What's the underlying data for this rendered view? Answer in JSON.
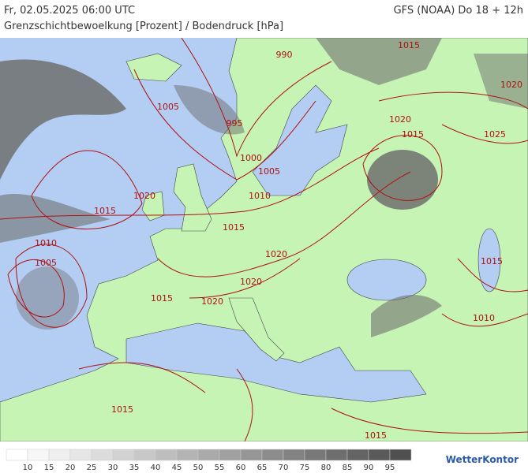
{
  "header": {
    "valid_time": "Fr, 02.05.2025 06:00 UTC",
    "model": "GFS (NOAA) Do 18 + 12h",
    "subtitle": "Grenzschichtbewoelkung [Prozent] / Bodendruck [hPa]"
  },
  "map": {
    "isobar_labels": [
      990,
      1015,
      1020,
      1005,
      995,
      1020,
      1015,
      1025,
      1000,
      1005,
      1020,
      1010,
      1015,
      1015,
      1010,
      1020,
      1005,
      1015,
      1020,
      1015,
      1020,
      1010,
      1015,
      1015
    ],
    "isobar_color": "#b01010"
  },
  "legend": {
    "ticks": [
      10,
      15,
      20,
      25,
      30,
      35,
      40,
      45,
      50,
      55,
      60,
      65,
      70,
      75,
      80,
      85,
      90,
      95
    ],
    "colors": [
      "#ffffff",
      "#f7f7f7",
      "#efefef",
      "#e6e6e6",
      "#dcdcdc",
      "#d2d2d2",
      "#c8c8c8",
      "#bebebe",
      "#b4b4b4",
      "#aaaaaa",
      "#a0a0a0",
      "#969696",
      "#8c8c8c",
      "#828282",
      "#787878",
      "#6e6e6e",
      "#646464",
      "#5a5a5a",
      "#505050"
    ]
  },
  "brand": "WetterKontor"
}
